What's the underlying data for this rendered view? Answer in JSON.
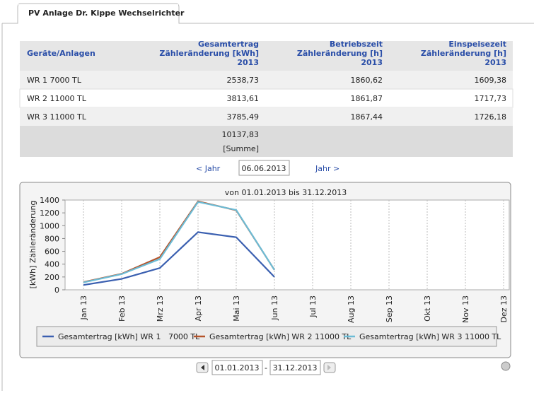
{
  "tab": "PV Anlage Dr. Kippe Wechselrichter",
  "table": {
    "header": [
      "Geräte/Anlagen",
      [
        "Gesamtertrag",
        "Zähleränderung [kWh]",
        "2013"
      ],
      [
        "Betriebszeit",
        "Zähleränderung [h]",
        "2013"
      ],
      [
        "Einspeisezeit",
        "Zähleränderung [h]",
        "2013"
      ]
    ],
    "rows": [
      [
        "WR 1 7000 TL",
        "2538,73",
        "1860,62",
        "1609,38"
      ],
      [
        "WR 2 11000 TL",
        "3813,61",
        "1861,87",
        "1717,73"
      ],
      [
        "WR 3 11000 TL",
        "3785,49",
        "1867,44",
        "1726,18"
      ]
    ],
    "sum": "10137,83",
    "sum_label": "[Summe]"
  },
  "nav": {
    "prev": "< Jahr",
    "date": "06.06.2013",
    "next": "Jahr >"
  },
  "chart_data": {
    "type": "line",
    "title": "von 01.01.2013 bis 31.12.2013",
    "y_label": "[kWh] Zähleränderung",
    "categories": [
      "Jan 13",
      "Feb 13",
      "Mrz 13",
      "Apr 13",
      "Mai 13",
      "Jun 13",
      "Jul 13",
      "Aug 13",
      "Sep 13",
      "Okt 13",
      "Nov 13",
      "Dez 13"
    ],
    "series": [
      {
        "name": "Gesamtertrag [kWh] WR 1   7000 TL",
        "color": "#3a5fb0",
        "values": [
          75,
          170,
          340,
          900,
          820,
          200,
          null,
          null,
          null,
          null,
          null,
          null
        ]
      },
      {
        "name": "Gesamtertrag [kWh] WR 2 11000 TL",
        "color": "#b5532a",
        "values": [
          120,
          250,
          510,
          1380,
          1240,
          310,
          null,
          null,
          null,
          null,
          null,
          null
        ]
      },
      {
        "name": "Gesamtertrag [kWh] WR 3 11000 TL",
        "color": "#6cbcd6",
        "values": [
          115,
          245,
          480,
          1370,
          1245,
          310,
          null,
          null,
          null,
          null,
          null,
          null
        ]
      }
    ],
    "ylim": [
      0,
      1400
    ],
    "yticks": [
      0,
      200,
      400,
      600,
      800,
      1000,
      1200,
      1400
    ],
    "grid": true
  },
  "range": {
    "from": "01.01.2013",
    "separator": "-",
    "to": "31.12.2013"
  }
}
